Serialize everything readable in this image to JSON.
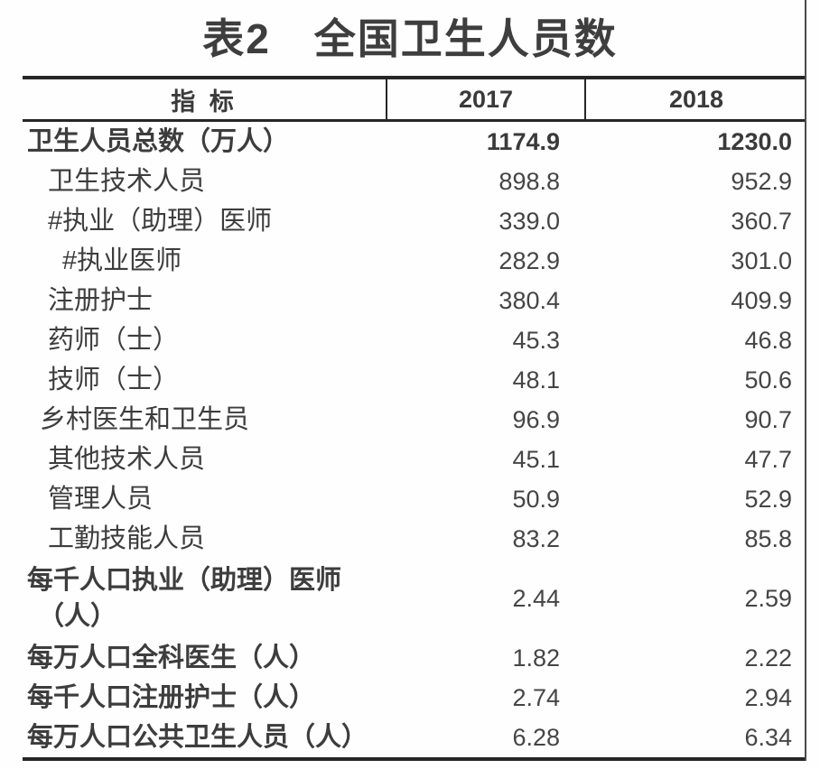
{
  "title": "表2　全国卫生人员数",
  "table": {
    "headers": {
      "indicator": "指 标",
      "col2017": "2017",
      "col2018": "2018"
    },
    "rows": [
      {
        "label": "卫生人员总数（万人）",
        "v2017": "1174.9",
        "v2018": "1230.0",
        "indent": 0,
        "bold_label": true,
        "bold_values": true,
        "two_line": false
      },
      {
        "label": "卫生技术人员",
        "v2017": "898.8",
        "v2018": "952.9",
        "indent": 2,
        "bold_label": false,
        "bold_values": false,
        "two_line": false
      },
      {
        "label": "#执业（助理）医师",
        "v2017": "339.0",
        "v2018": "360.7",
        "indent": 2,
        "bold_label": false,
        "bold_values": false,
        "two_line": false
      },
      {
        "label": "#执业医师",
        "v2017": "282.9",
        "v2018": "301.0",
        "indent": 3,
        "bold_label": false,
        "bold_values": false,
        "two_line": false
      },
      {
        "label": "注册护士",
        "v2017": "380.4",
        "v2018": "409.9",
        "indent": 2,
        "bold_label": false,
        "bold_values": false,
        "two_line": false
      },
      {
        "label": "药师（士）",
        "v2017": "45.3",
        "v2018": "46.8",
        "indent": 2,
        "bold_label": false,
        "bold_values": false,
        "two_line": false
      },
      {
        "label": "技师（士）",
        "v2017": "48.1",
        "v2018": "50.6",
        "indent": 2,
        "bold_label": false,
        "bold_values": false,
        "two_line": false
      },
      {
        "label": "乡村医生和卫生员",
        "v2017": "96.9",
        "v2018": "90.7",
        "indent": 1,
        "bold_label": false,
        "bold_values": false,
        "two_line": false
      },
      {
        "label": "其他技术人员",
        "v2017": "45.1",
        "v2018": "47.7",
        "indent": 2,
        "bold_label": false,
        "bold_values": false,
        "two_line": false
      },
      {
        "label": "管理人员",
        "v2017": "50.9",
        "v2018": "52.9",
        "indent": 2,
        "bold_label": false,
        "bold_values": false,
        "two_line": false
      },
      {
        "label": "工勤技能人员",
        "v2017": "83.2",
        "v2018": "85.8",
        "indent": 2,
        "bold_label": false,
        "bold_values": false,
        "two_line": false
      },
      {
        "label": "每千人口执业（助理）医师",
        "label_line2": "（人）",
        "v2017": "2.44",
        "v2018": "2.59",
        "indent": 0,
        "bold_label": true,
        "bold_values": false,
        "two_line": true
      },
      {
        "label": "每万人口全科医生（人）",
        "v2017": "1.82",
        "v2018": "2.22",
        "indent": 0,
        "bold_label": true,
        "bold_values": false,
        "two_line": false
      },
      {
        "label": "每千人口注册护士（人）",
        "v2017": "2.74",
        "v2018": "2.94",
        "indent": 0,
        "bold_label": true,
        "bold_values": false,
        "two_line": false
      },
      {
        "label": "每万人口公共卫生人员（人）",
        "v2017": "6.28",
        "v2018": "6.34",
        "indent": 0,
        "bold_label": true,
        "bold_values": false,
        "two_line": false
      }
    ]
  },
  "colors": {
    "text": "#3d3d3d",
    "line": "#262626",
    "background": "#ffffff"
  }
}
